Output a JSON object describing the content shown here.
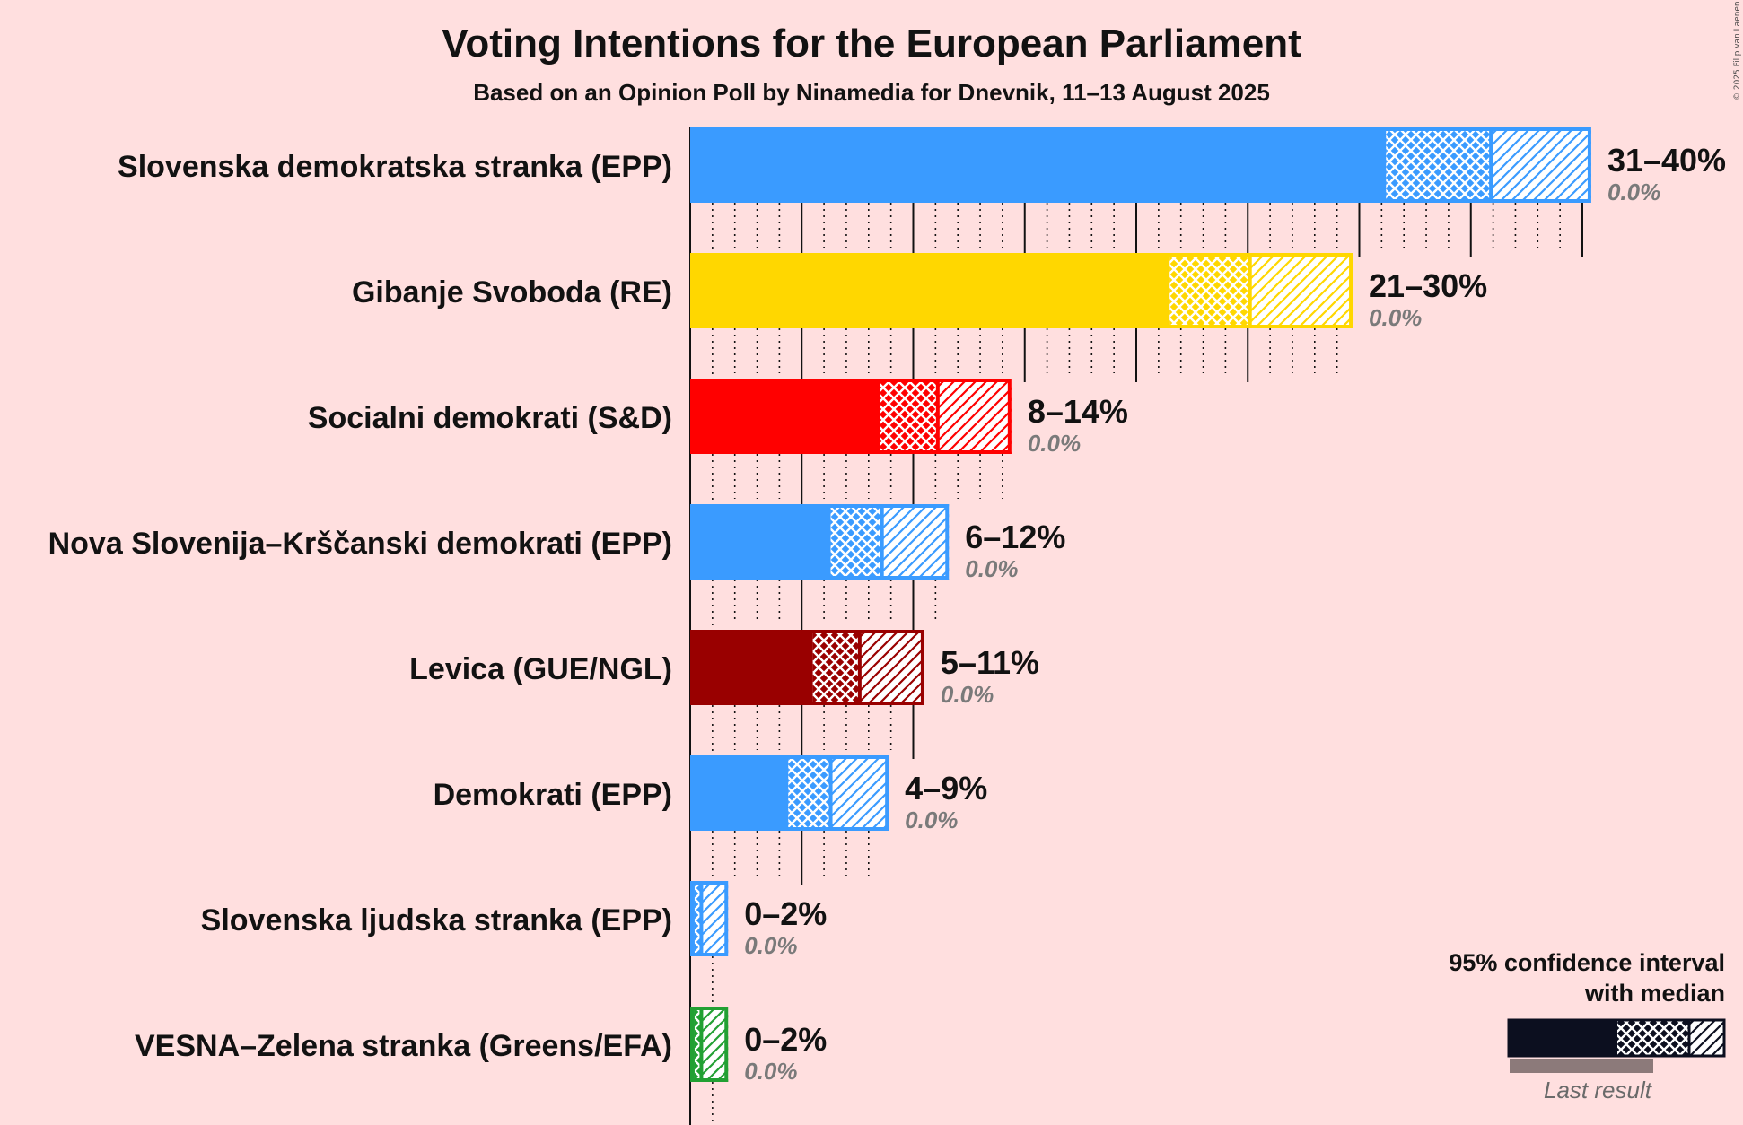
{
  "chart_data": {
    "type": "bar",
    "orientation": "horizontal",
    "title": "Voting Intentions for the European Parliament",
    "subtitle": "Based on an Opinion Poll by Ninamedia for Dnevnik, 11–13 August 2025",
    "copyright": "© 2025 Filip van Laenen",
    "xlim": [
      0,
      40
    ],
    "series": [
      {
        "name": "Slovenska demokratska stranka (EPP)",
        "color": "#3A9BFF",
        "solid_to": 31.2,
        "median": 35.9,
        "ci_high": 40.4,
        "range_label": "31–40%",
        "last_result_label": "0.0%",
        "last_result": 0.0,
        "dots_to": 40
      },
      {
        "name": "Gibanje Svoboda (RE)",
        "color": "#FFD700",
        "solid_to": 21.5,
        "median": 25.1,
        "ci_high": 29.7,
        "range_label": "21–30%",
        "last_result_label": "0.0%",
        "last_result": 0.0,
        "dots_to": 29
      },
      {
        "name": "Socialni demokrati (S&D)",
        "color": "#FF0000",
        "solid_to": 8.5,
        "median": 11.1,
        "ci_high": 14.4,
        "range_label": "8–14%",
        "last_result_label": "0.0%",
        "last_result": 0.0,
        "dots_to": 14
      },
      {
        "name": "Nova Slovenija–Krščanski demokrati (EPP)",
        "color": "#3A9BFF",
        "solid_to": 6.3,
        "median": 8.6,
        "ci_high": 11.6,
        "range_label": "6–12%",
        "last_result_label": "0.0%",
        "last_result": 0.0,
        "dots_to": 11
      },
      {
        "name": "Levica (GUE/NGL)",
        "color": "#990000",
        "solid_to": 5.5,
        "median": 7.6,
        "ci_high": 10.5,
        "range_label": "5–11%",
        "last_result_label": "0.0%",
        "last_result": 0.0,
        "dots_to": 10
      },
      {
        "name": "Demokrati (EPP)",
        "color": "#3A9BFF",
        "solid_to": 4.4,
        "median": 6.3,
        "ci_high": 8.9,
        "range_label": "4–9%",
        "last_result_label": "0.0%",
        "last_result": 0.0,
        "dots_to": 8
      },
      {
        "name": "Slovenska ljudska stranka (EPP)",
        "color": "#3A9BFF",
        "solid_to": 0.2,
        "median": 0.5,
        "ci_high": 1.7,
        "range_label": "0–2%",
        "last_result_label": "0.0%",
        "last_result": 0.0,
        "dots_to": 1
      },
      {
        "name": "VESNA–Zelena stranka (Greens/EFA)",
        "color": "#22A033",
        "solid_to": 0.2,
        "median": 0.5,
        "ci_high": 1.7,
        "range_label": "0–2%",
        "last_result_label": "0.0%",
        "last_result": 0.0,
        "dots_to": 1
      }
    ],
    "legend": {
      "title_line1": "95% confidence interval",
      "title_line2": "with median",
      "last_result": "Last result",
      "color": "#0C0F1F",
      "last_color": "#8C7A7A",
      "position": "bottom-right"
    }
  }
}
